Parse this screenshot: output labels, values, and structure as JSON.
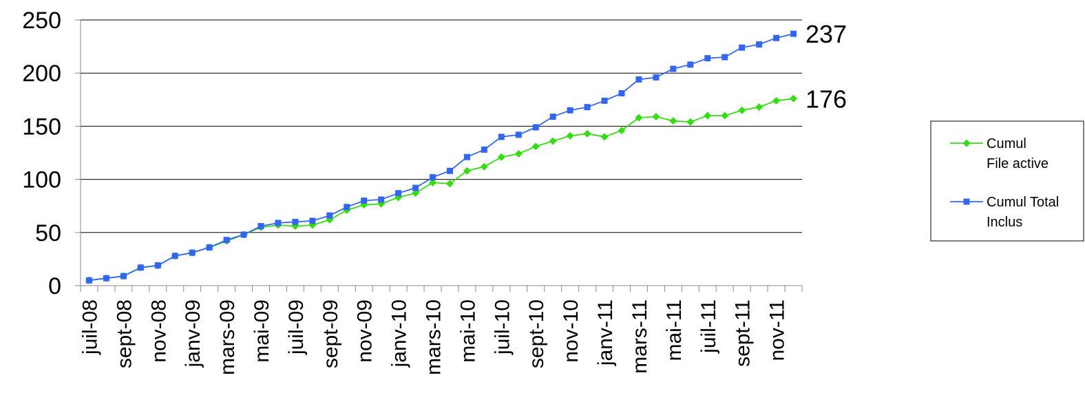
{
  "chart_data": {
    "type": "line",
    "title": "",
    "xlabel": "",
    "ylabel": "",
    "ylim": [
      0,
      250
    ],
    "yticks": [
      0,
      50,
      100,
      150,
      200,
      250
    ],
    "grid": true,
    "legend_position": "right",
    "x": [
      "juil-08",
      "août-08",
      "sept-08",
      "oct-08",
      "nov-08",
      "déc-08",
      "janv-09",
      "févr-09",
      "mars-09",
      "avr-09",
      "mai-09",
      "juin-09",
      "juil-09",
      "août-09",
      "sept-09",
      "oct-09",
      "nov-09",
      "déc-09",
      "janv-10",
      "févr-10",
      "mars-10",
      "avr-10",
      "mai-10",
      "juin-10",
      "juil-10",
      "août-10",
      "sept-10",
      "oct-10",
      "nov-10",
      "déc-10",
      "janv-11",
      "févr-11",
      "mars-11",
      "avr-11",
      "mai-11",
      "juin-11",
      "juil-11",
      "août-11",
      "sept-11",
      "oct-11",
      "nov-11",
      "déc-11"
    ],
    "x_tick_labels": [
      "juil-08",
      "sept-08",
      "nov-08",
      "janv-09",
      "mars-09",
      "mai-09",
      "juil-09",
      "sept-09",
      "nov-09",
      "janv-10",
      "mars-10",
      "mai-10",
      "juil-10",
      "sept-10",
      "nov-10",
      "janv-11",
      "mars-11",
      "mai-11",
      "juil-11",
      "sept-11",
      "nov-11"
    ],
    "series": [
      {
        "name": "Cumul File active",
        "legend_lines": [
          "Cumul",
          "File active"
        ],
        "color": "#33dd11",
        "marker": "diamond",
        "end_label": "176",
        "values": [
          5,
          7,
          9,
          17,
          19,
          28,
          31,
          36,
          42,
          48,
          55,
          57,
          56,
          57,
          62,
          71,
          76,
          77,
          83,
          87,
          97,
          96,
          108,
          112,
          121,
          124,
          131,
          136,
          141,
          143,
          140,
          146,
          158,
          159,
          155,
          154,
          160,
          160,
          165,
          168,
          174,
          176
        ]
      },
      {
        "name": "Cumul Total Inclus",
        "legend_lines": [
          "Cumul Total",
          "Inclus"
        ],
        "color": "#3366ee",
        "marker": "square",
        "end_label": "237",
        "values": [
          5,
          7,
          9,
          17,
          19,
          28,
          31,
          36,
          43,
          48,
          56,
          59,
          60,
          61,
          66,
          74,
          80,
          81,
          87,
          92,
          102,
          108,
          121,
          128,
          140,
          142,
          149,
          159,
          165,
          168,
          174,
          181,
          194,
          196,
          204,
          208,
          214,
          215,
          224,
          227,
          233,
          237
        ]
      }
    ]
  }
}
